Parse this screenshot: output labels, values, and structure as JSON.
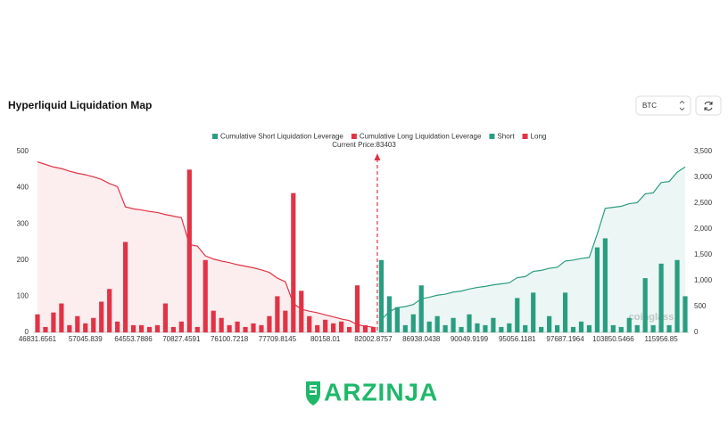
{
  "header": {
    "title": "Hyperliquid Liquidation Map",
    "symbol": "BTC"
  },
  "chart_data": {
    "type": "bar",
    "current_price_label": "Current Price:83403",
    "watermark": "coinglass",
    "categories": [
      "46831.6561",
      null,
      null,
      null,
      null,
      null,
      "57045.839",
      null,
      null,
      null,
      null,
      null,
      "64553.7886",
      null,
      null,
      null,
      null,
      null,
      "70827.4591",
      null,
      null,
      null,
      null,
      null,
      "76100.7218",
      null,
      null,
      null,
      null,
      null,
      "77709.8145",
      null,
      null,
      null,
      null,
      null,
      "80158.01",
      null,
      null,
      null,
      null,
      null,
      "82002.8757",
      null,
      null,
      null,
      null,
      null,
      "86938.0438",
      null,
      null,
      null,
      null,
      null,
      "90049.9199",
      null,
      null,
      null,
      null,
      null,
      "95056.1181",
      null,
      null,
      null,
      null,
      null,
      "97687.1964",
      null,
      null,
      null,
      null,
      null,
      "103850.5466",
      null,
      null,
      null,
      null,
      null,
      "115956.85",
      null,
      null,
      null
    ],
    "ylim": [
      0,
      500
    ],
    "yticks": [
      0,
      100,
      200,
      300,
      400,
      500
    ],
    "y2lim": [
      0,
      3500
    ],
    "y2ticks": [
      0,
      500,
      {
        "value": 1000,
        "label": "1,000"
      },
      {
        "value": 1500,
        "label": "1,500"
      },
      {
        "value": 2000,
        "label": "2,000"
      },
      {
        "value": 2500,
        "label": "2,500"
      },
      {
        "value": 3000,
        "label": "3,000"
      },
      {
        "value": 3500,
        "label": "3,500"
      }
    ],
    "grid": false,
    "series": [
      {
        "name": "Cumulative Short Liquidation Leverage",
        "type": "line",
        "axis": "y2",
        "color": "#2a9d80",
        "values": [
          null,
          null,
          null,
          null,
          null,
          null,
          null,
          null,
          null,
          null,
          null,
          null,
          null,
          null,
          null,
          null,
          null,
          null,
          null,
          null,
          null,
          null,
          null,
          null,
          null,
          null,
          null,
          null,
          null,
          null,
          null,
          null,
          null,
          null,
          null,
          null,
          null,
          null,
          null,
          null,
          null,
          null,
          null,
          250,
          400,
          480,
          500,
          540,
          650,
          680,
          720,
          740,
          780,
          800,
          840,
          870,
          890,
          920,
          940,
          960,
          1060,
          1080,
          1180,
          1200,
          1240,
          1260,
          1380,
          1400,
          1430,
          1450,
          1900,
          2400,
          2420,
          2440,
          2490,
          2510,
          2680,
          2700,
          2900,
          2920,
          3100,
          3200
        ]
      },
      {
        "name": "Cumulative Long Liquidation Leverage",
        "type": "line",
        "axis": "y2",
        "color": "#e23345",
        "values": [
          3300,
          3250,
          3200,
          3170,
          3120,
          3080,
          3050,
          3010,
          2960,
          2880,
          2820,
          2430,
          2390,
          2370,
          2340,
          2320,
          2280,
          2250,
          2220,
          1700,
          1670,
          1480,
          1420,
          1380,
          1350,
          1310,
          1280,
          1250,
          1210,
          1160,
          1050,
          980,
          560,
          450,
          410,
          380,
          340,
          300,
          260,
          230,
          150,
          120,
          100,
          null,
          null,
          null,
          null,
          null,
          null,
          null,
          null,
          null,
          null,
          null,
          null,
          null,
          null,
          null,
          null,
          null,
          null,
          null,
          null,
          null,
          null,
          null,
          null,
          null,
          null,
          null,
          null,
          null,
          null,
          null,
          null,
          null,
          null,
          null,
          null,
          null,
          null,
          null
        ]
      },
      {
        "name": "Short",
        "type": "bar",
        "color": "#2a9d80",
        "values": [
          null,
          null,
          null,
          null,
          null,
          null,
          null,
          null,
          null,
          null,
          null,
          null,
          null,
          null,
          null,
          null,
          null,
          null,
          null,
          null,
          null,
          null,
          null,
          null,
          null,
          null,
          null,
          null,
          null,
          null,
          null,
          null,
          null,
          null,
          null,
          null,
          null,
          null,
          null,
          null,
          null,
          null,
          null,
          200,
          100,
          70,
          20,
          50,
          130,
          30,
          45,
          20,
          40,
          15,
          50,
          25,
          20,
          40,
          15,
          25,
          95,
          20,
          110,
          15,
          45,
          20,
          110,
          15,
          30,
          20,
          235,
          260,
          20,
          15,
          40,
          20,
          150,
          20,
          190,
          20,
          200,
          100
        ]
      },
      {
        "name": "Long",
        "type": "bar",
        "color": "#e23345",
        "values": [
          50,
          15,
          55,
          80,
          20,
          45,
          25,
          40,
          85,
          120,
          30,
          250,
          20,
          20,
          15,
          20,
          80,
          15,
          30,
          450,
          15,
          200,
          60,
          40,
          20,
          30,
          15,
          25,
          20,
          45,
          100,
          60,
          385,
          115,
          45,
          20,
          35,
          25,
          30,
          15,
          130,
          20,
          15,
          null,
          null,
          null,
          null,
          null,
          null,
          null,
          null,
          null,
          null,
          null,
          null,
          null,
          null,
          null,
          null,
          null,
          null,
          null,
          null,
          null,
          null,
          null,
          null,
          null,
          null,
          null,
          null,
          null,
          null,
          null,
          null,
          null,
          null,
          null,
          null,
          null,
          null,
          null
        ]
      }
    ]
  },
  "brand": "ARZINJA"
}
